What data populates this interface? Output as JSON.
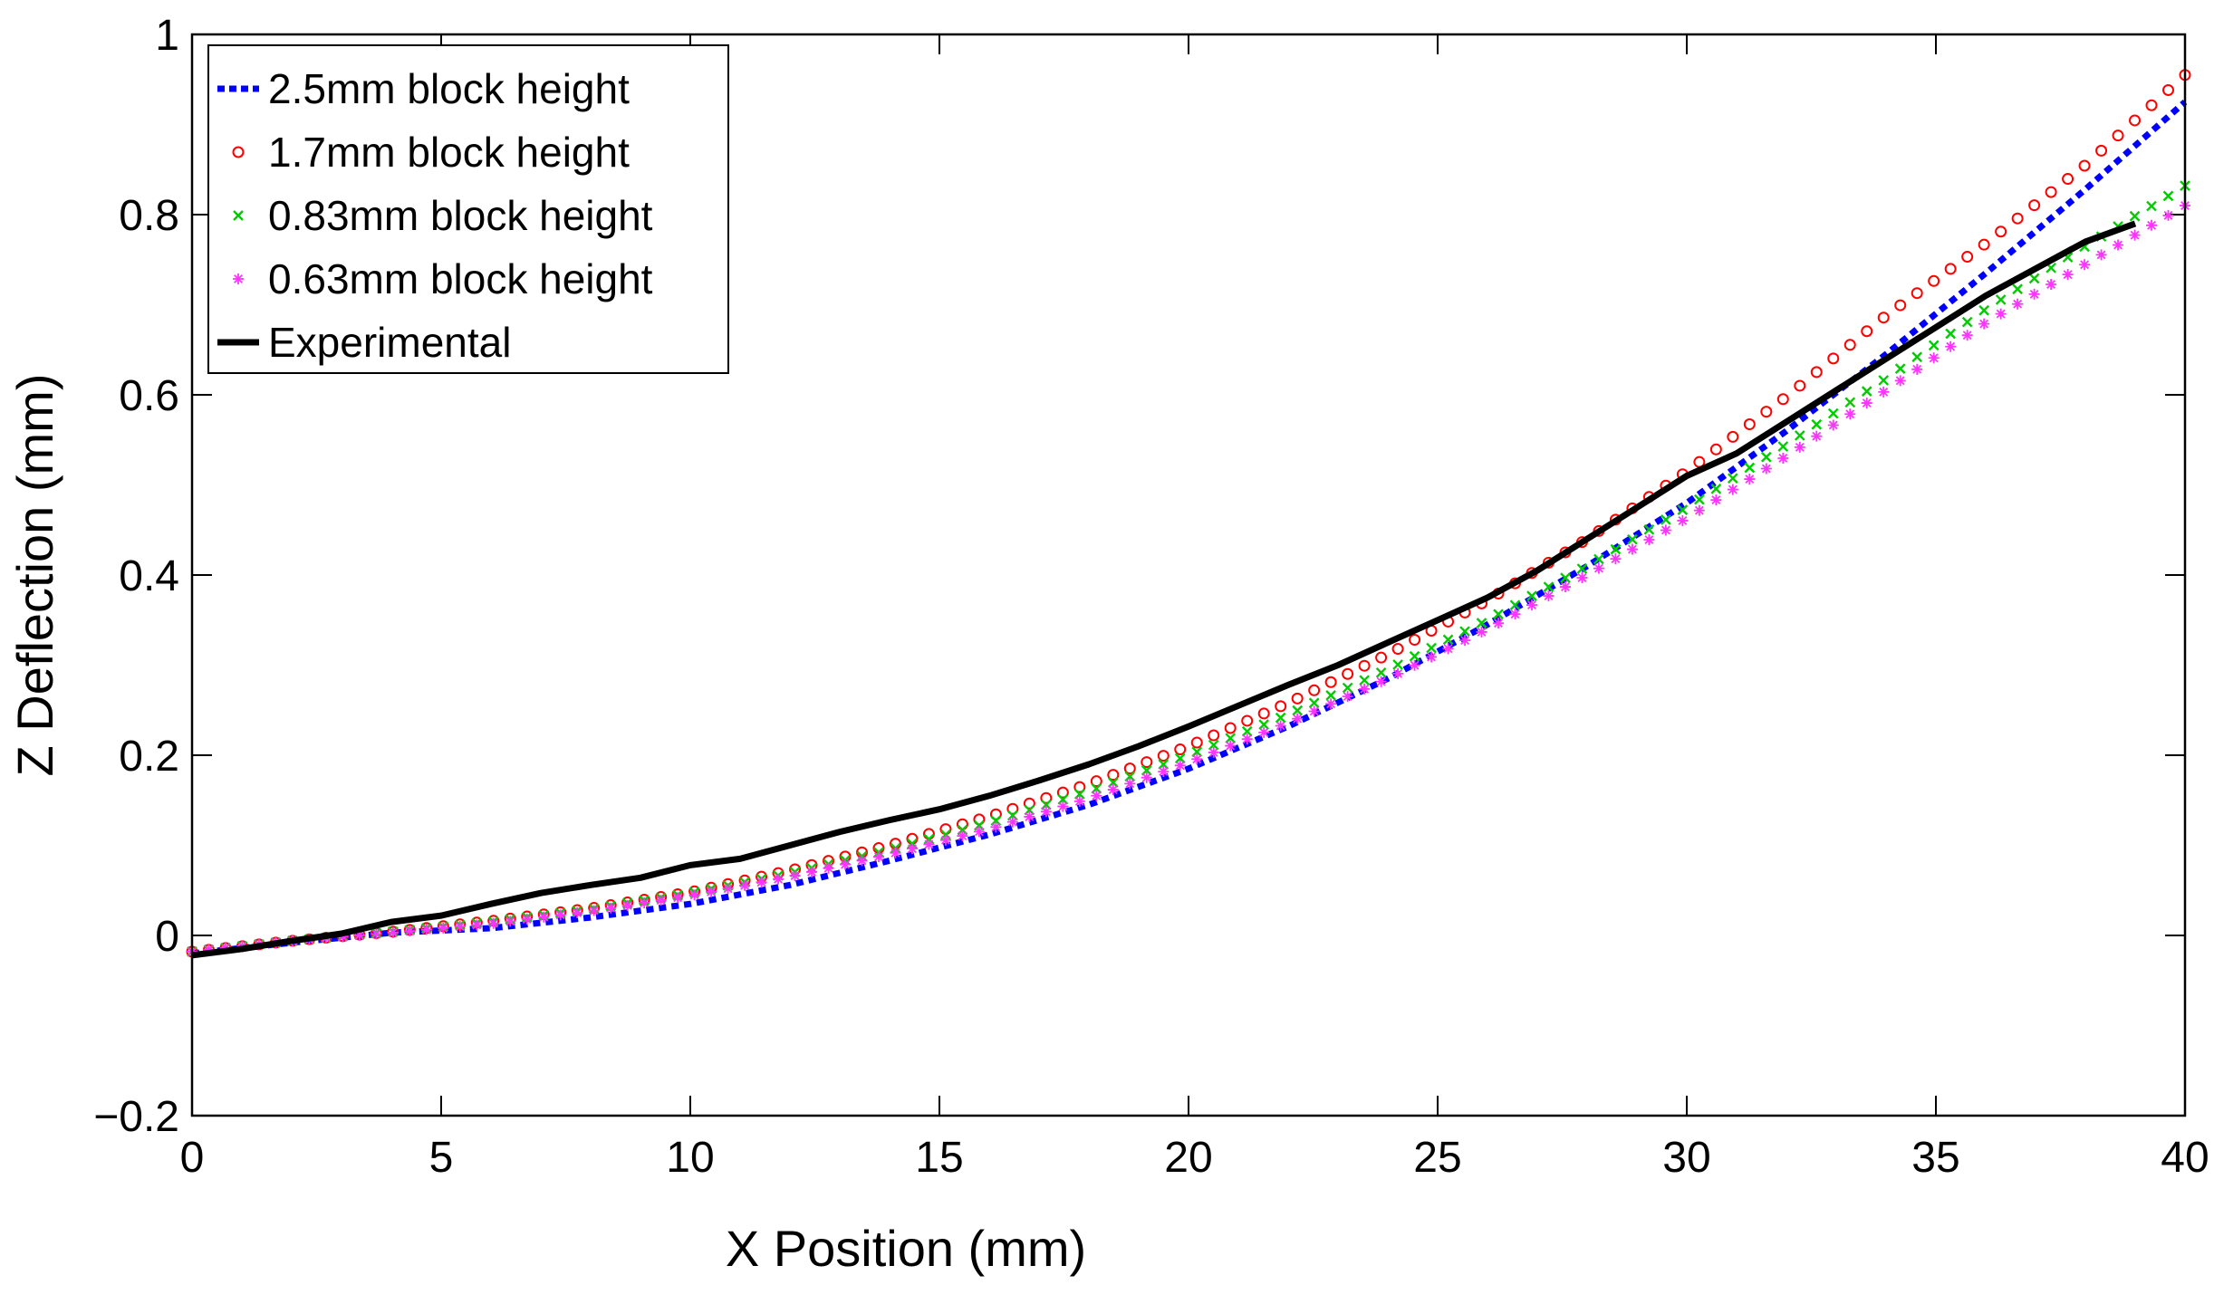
{
  "chart_data": {
    "type": "line",
    "title": "",
    "xlabel": "X Position (mm)",
    "ylabel": "Z Deflection (mm)",
    "xlim": [
      0,
      40
    ],
    "ylim": [
      -0.2,
      1
    ],
    "xticks": [
      0,
      5,
      10,
      15,
      20,
      25,
      30,
      35,
      40
    ],
    "xtick_labels": [
      "0",
      "5",
      "10",
      "15",
      "20",
      "25",
      "30",
      "35",
      "40"
    ],
    "yticks": [
      -0.2,
      0,
      0.2,
      0.4,
      0.6,
      0.8,
      1
    ],
    "ytick_labels": [
      "−0.2",
      "0",
      "0.2",
      "0.4",
      "0.6",
      "0.8",
      "1"
    ],
    "grid": false,
    "legend_position": "top-left",
    "series": [
      {
        "name": "2.5mm block height",
        "color": "#0000ff",
        "style": "dotted",
        "x": [
          0,
          2,
          4,
          6,
          8,
          10,
          12,
          14,
          16,
          18,
          20,
          22,
          24,
          26,
          28,
          30,
          32,
          34,
          36,
          38,
          40
        ],
        "y": [
          -0.02,
          -0.008,
          0.003,
          0.008,
          0.02,
          0.035,
          0.056,
          0.083,
          0.112,
          0.145,
          0.185,
          0.232,
          0.285,
          0.345,
          0.41,
          0.48,
          0.56,
          0.645,
          0.735,
          0.828,
          0.925
        ]
      },
      {
        "name": "1.7mm block height",
        "color": "#ff0000",
        "style": "circle",
        "x": [
          0,
          2,
          4,
          6,
          8,
          10,
          12,
          14,
          16,
          18,
          20,
          22,
          24,
          26,
          28,
          30,
          32,
          34,
          36,
          38,
          40
        ],
        "y": [
          -0.018,
          -0.006,
          0.004,
          0.016,
          0.03,
          0.048,
          0.072,
          0.1,
          0.132,
          0.168,
          0.21,
          0.258,
          0.312,
          0.372,
          0.44,
          0.515,
          0.598,
          0.688,
          0.768,
          0.855,
          0.955
        ]
      },
      {
        "name": "0.83mm block height",
        "color": "#00cc00",
        "style": "x",
        "x": [
          0,
          2,
          4,
          6,
          8,
          10,
          12,
          14,
          16,
          18,
          20,
          22,
          24,
          26,
          28,
          30,
          32,
          34,
          36,
          38,
          40
        ],
        "y": [
          -0.018,
          -0.006,
          0.004,
          0.015,
          0.029,
          0.047,
          0.069,
          0.095,
          0.125,
          0.16,
          0.2,
          0.245,
          0.295,
          0.35,
          0.41,
          0.475,
          0.545,
          0.618,
          0.695,
          0.765,
          0.832
        ]
      },
      {
        "name": "0.63mm block height",
        "color": "#ff33ff",
        "style": "star",
        "x": [
          0,
          2,
          4,
          6,
          8,
          10,
          12,
          14,
          16,
          18,
          20,
          22,
          24,
          26,
          28,
          30,
          32,
          34,
          36,
          38,
          40
        ],
        "y": [
          -0.018,
          -0.006,
          0.003,
          0.013,
          0.027,
          0.044,
          0.065,
          0.09,
          0.118,
          0.152,
          0.192,
          0.236,
          0.285,
          0.34,
          0.4,
          0.463,
          0.532,
          0.605,
          0.68,
          0.745,
          0.81
        ]
      },
      {
        "name": "Experimental",
        "color": "#000000",
        "style": "solid",
        "x": [
          0,
          1,
          2,
          3,
          4,
          5,
          6,
          7,
          8,
          9,
          10,
          11,
          12,
          13,
          14,
          15,
          16,
          17,
          18,
          19,
          20,
          21,
          22,
          23,
          24,
          25,
          26,
          27,
          28,
          29,
          30,
          31,
          32,
          33,
          34,
          35,
          36,
          37,
          38,
          39
        ],
        "y": [
          -0.022,
          -0.015,
          -0.006,
          0.002,
          0.015,
          0.022,
          0.035,
          0.047,
          0.056,
          0.064,
          0.078,
          0.085,
          0.1,
          0.115,
          0.128,
          0.14,
          0.155,
          0.172,
          0.19,
          0.21,
          0.232,
          0.255,
          0.278,
          0.3,
          0.325,
          0.35,
          0.375,
          0.405,
          0.44,
          0.475,
          0.51,
          0.535,
          0.57,
          0.605,
          0.64,
          0.675,
          0.71,
          0.74,
          0.77,
          0.79
        ]
      }
    ]
  }
}
